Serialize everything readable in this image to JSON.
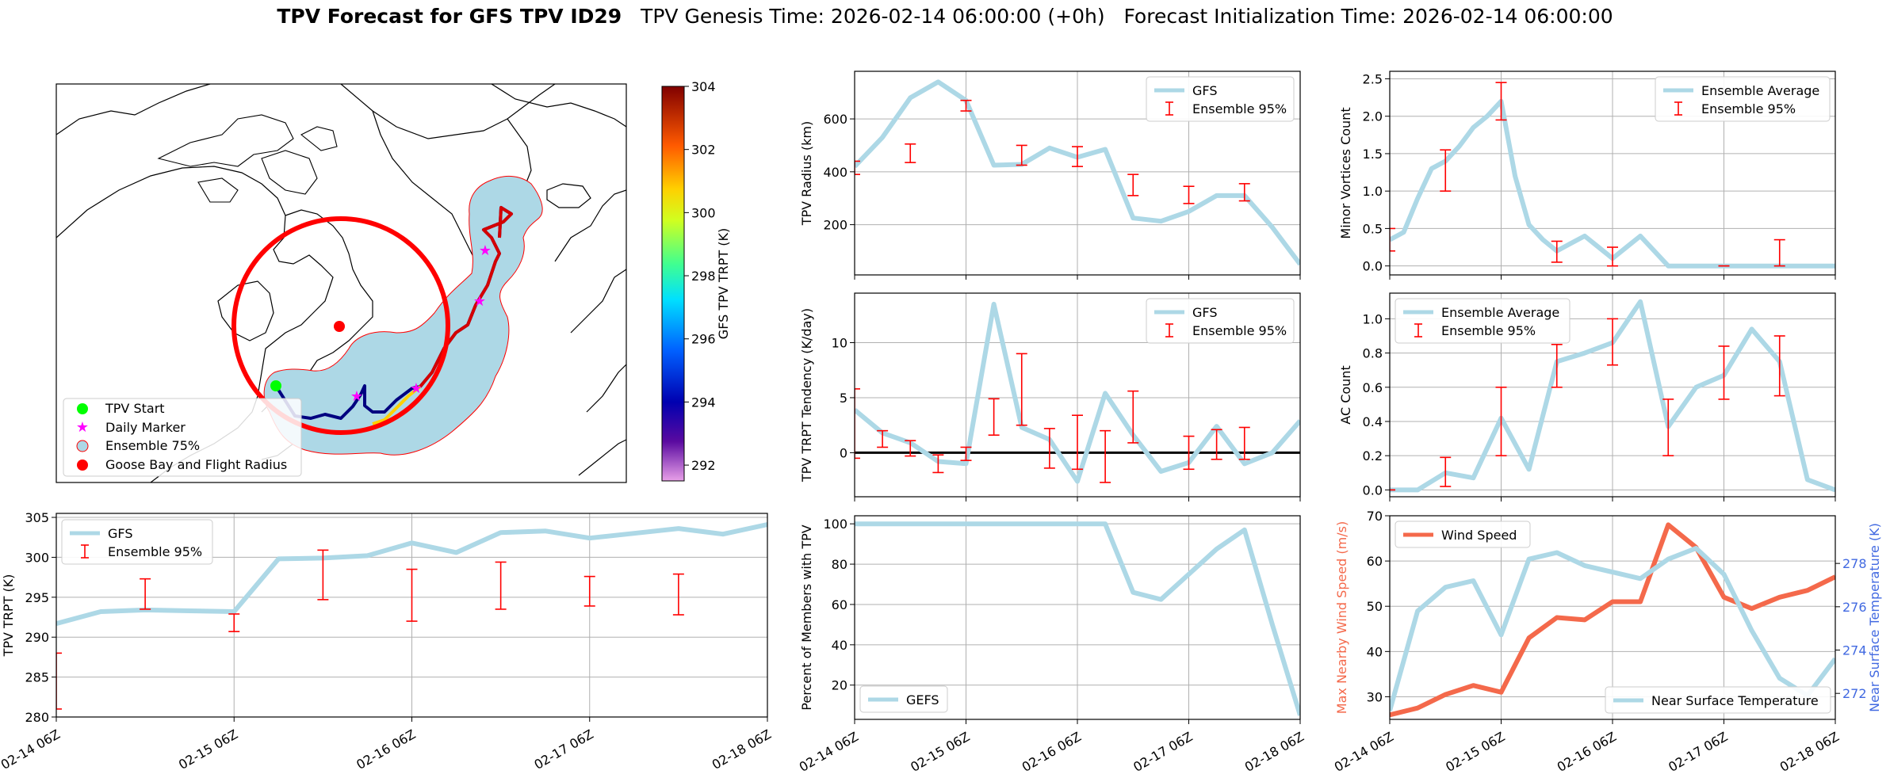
{
  "header": {
    "bold": "TPV Forecast for GFS TPV ID29",
    "genesis": "TPV Genesis Time: 2026-02-14 06:00:00 (+0h)",
    "init": "Forecast Initialization Time: 2026-02-14 06:00:00"
  },
  "map": {
    "legend": [
      "TPV Start",
      "Daily Marker",
      "Ensemble 75%",
      "Goose Bay and Flight Radius"
    ],
    "colorbar": {
      "label": "GFS TPV TRPT (K)",
      "ticks": [
        "304",
        "302",
        "300",
        "298",
        "296",
        "294",
        "292"
      ],
      "range": [
        291.5,
        304
      ]
    }
  },
  "colors": {
    "gfs": "#add8e6",
    "ens": "#ff0000",
    "wind": "#f4694b",
    "temp_axis": "#4169e1",
    "start": "#00ff00",
    "marker": "#ff00ff",
    "goose": "#ff0000"
  },
  "chart_data": [
    {
      "id": "trpt",
      "type": "line",
      "title": "",
      "xlabel": "",
      "ylabel": "TPV TRPT (K)",
      "xlim": [
        0,
        96
      ],
      "ylim": [
        280,
        305.5
      ],
      "xticks": [
        "02-14 06Z",
        "02-15 06Z",
        "02-16 06Z",
        "02-17 06Z",
        "02-18 06Z"
      ],
      "yticks": [
        "280",
        "285",
        "290",
        "295",
        "300",
        "305"
      ],
      "legend": [
        "GFS",
        "Ensemble 95%"
      ],
      "series": [
        {
          "name": "GFS",
          "x": [
            0,
            6,
            12,
            18,
            24,
            30,
            36,
            42,
            48,
            54,
            60,
            66,
            72,
            78,
            84,
            90,
            96
          ],
          "y": [
            291.7,
            293.2,
            293.4,
            293.3,
            293.2,
            299.8,
            299.9,
            300.2,
            301.8,
            300.6,
            303.1,
            303.3,
            302.4,
            303.0,
            303.6,
            302.9,
            304.1
          ]
        }
      ],
      "ensemble_95": [
        {
          "x": 0,
          "lo": 281.0,
          "hi": 288.0
        },
        {
          "x": 12,
          "lo": 293.5,
          "hi": 297.3
        },
        {
          "x": 24,
          "lo": 290.7,
          "hi": 292.9
        },
        {
          "x": 36,
          "lo": 294.7,
          "hi": 300.9
        },
        {
          "x": 48,
          "lo": 292.0,
          "hi": 298.5
        },
        {
          "x": 60,
          "lo": 293.5,
          "hi": 299.4
        },
        {
          "x": 72,
          "lo": 293.9,
          "hi": 297.6
        },
        {
          "x": 84,
          "lo": 292.8,
          "hi": 297.9
        }
      ]
    },
    {
      "id": "radius",
      "type": "line",
      "ylabel": "TPV Radius (km)",
      "xlim": [
        0,
        96
      ],
      "ylim": [
        10,
        780
      ],
      "xticks": [],
      "yticks": [
        "200",
        "400",
        "600"
      ],
      "legend": [
        "GFS",
        "Ensemble 95%"
      ],
      "series": [
        {
          "name": "GFS",
          "x": [
            0,
            6,
            12,
            18,
            24,
            30,
            36,
            42,
            48,
            54,
            60,
            66,
            72,
            78,
            84,
            90,
            96
          ],
          "y": [
            420,
            530,
            680,
            740,
            670,
            425,
            428,
            490,
            455,
            485,
            225,
            213,
            250,
            310,
            310,
            190,
            50
          ]
        }
      ],
      "ensemble_95": [
        {
          "x": 0,
          "lo": 390,
          "hi": 440
        },
        {
          "x": 12,
          "lo": 435,
          "hi": 505
        },
        {
          "x": 24,
          "lo": 630,
          "hi": 670
        },
        {
          "x": 36,
          "lo": 425,
          "hi": 500
        },
        {
          "x": 48,
          "lo": 420,
          "hi": 495
        },
        {
          "x": 60,
          "lo": 310,
          "hi": 390
        },
        {
          "x": 72,
          "lo": 280,
          "hi": 345
        },
        {
          "x": 84,
          "lo": 290,
          "hi": 355
        }
      ]
    },
    {
      "id": "tend",
      "type": "line",
      "ylabel": "TPV TRPT Tendency (K/day)",
      "xlim": [
        0,
        96
      ],
      "ylim": [
        -4,
        14.5
      ],
      "xticks": [],
      "yticks": [
        "0",
        "5",
        "10"
      ],
      "legend": [
        "GFS",
        "Ensemble 95%"
      ],
      "series": [
        {
          "name": "GFS",
          "x": [
            0,
            6,
            12,
            18,
            24,
            30,
            36,
            42,
            48,
            54,
            60,
            66,
            72,
            78,
            84,
            90,
            96
          ],
          "y": [
            3.9,
            1.8,
            0.9,
            -0.8,
            -1.0,
            13.5,
            2.3,
            1.2,
            -2.6,
            5.4,
            1.6,
            -1.7,
            -0.9,
            2.4,
            -1.0,
            0.0,
            2.9
          ]
        }
      ],
      "ensemble_95": [
        {
          "x": 0,
          "lo": -0.5,
          "hi": 5.8
        },
        {
          "x": 6,
          "lo": 0.5,
          "hi": 2.0
        },
        {
          "x": 12,
          "lo": -0.3,
          "hi": 1.1
        },
        {
          "x": 18,
          "lo": -1.8,
          "hi": -0.2
        },
        {
          "x": 24,
          "lo": -0.7,
          "hi": 0.5
        },
        {
          "x": 30,
          "lo": 1.6,
          "hi": 4.9
        },
        {
          "x": 36,
          "lo": 2.5,
          "hi": 9.0
        },
        {
          "x": 42,
          "lo": -1.4,
          "hi": 2.2
        },
        {
          "x": 48,
          "lo": -1.5,
          "hi": 3.4
        },
        {
          "x": 54,
          "lo": -2.7,
          "hi": 2.0
        },
        {
          "x": 60,
          "lo": 0.9,
          "hi": 5.6
        },
        {
          "x": 72,
          "lo": -1.5,
          "hi": 1.5
        },
        {
          "x": 78,
          "lo": -0.6,
          "hi": 2.1
        },
        {
          "x": 84,
          "lo": -0.6,
          "hi": 2.3
        }
      ]
    },
    {
      "id": "pct",
      "type": "line",
      "ylabel": "Percent of Members with TPV",
      "xlim": [
        0,
        96
      ],
      "ylim": [
        3,
        104
      ],
      "xticks": [
        "02-14 06Z",
        "02-15 06Z",
        "02-16 06Z",
        "02-17 06Z",
        "02-18 06Z"
      ],
      "yticks": [
        "20",
        "40",
        "60",
        "80",
        "100"
      ],
      "legend": [
        "GEFS"
      ],
      "series": [
        {
          "name": "GEFS",
          "x": [
            0,
            6,
            12,
            18,
            24,
            30,
            36,
            42,
            48,
            54,
            60,
            66,
            72,
            78,
            84,
            90,
            96
          ],
          "y": [
            100,
            100,
            100,
            100,
            100,
            100,
            100,
            100,
            100,
            100,
            66,
            62.5,
            75,
            87.5,
            97,
            50,
            5
          ]
        }
      ]
    },
    {
      "id": "minor",
      "type": "line",
      "ylabel": "Minor Vortices Count",
      "xlim": [
        0,
        96
      ],
      "ylim": [
        -0.12,
        2.6
      ],
      "xticks": [],
      "yticks": [
        "0.0",
        "0.5",
        "1.0",
        "1.5",
        "2.0",
        "2.5"
      ],
      "legend": [
        "Ensemble Average",
        "Ensemble 95%"
      ],
      "series": [
        {
          "name": "Ensemble Average",
          "x": [
            0,
            3,
            6,
            9,
            12,
            15,
            18,
            21,
            24,
            27,
            30,
            33,
            36,
            39,
            42,
            45,
            48,
            51,
            54,
            57,
            60,
            63,
            66,
            69,
            72,
            75,
            78,
            81,
            84,
            87,
            90,
            93,
            96
          ],
          "y": [
            0.35,
            0.45,
            0.9,
            1.3,
            1.4,
            1.6,
            1.85,
            2.0,
            2.2,
            1.2,
            0.55,
            0.35,
            0.2,
            0.3,
            0.4,
            0.25,
            0.1,
            0.25,
            0.4,
            0.2,
            0.0,
            0.0,
            0.0,
            0.0,
            0.0,
            0.0,
            0.0,
            0.0,
            0.0,
            0.0,
            0.0,
            0.0,
            0.0
          ]
        }
      ],
      "ensemble_95": [
        {
          "x": 0,
          "lo": 0.2,
          "hi": 0.5
        },
        {
          "x": 12,
          "lo": 1.0,
          "hi": 1.55
        },
        {
          "x": 24,
          "lo": 1.95,
          "hi": 2.45
        },
        {
          "x": 36,
          "lo": 0.05,
          "hi": 0.33
        },
        {
          "x": 48,
          "lo": 0.0,
          "hi": 0.25
        },
        {
          "x": 72,
          "lo": 0.0,
          "hi": 0.0
        },
        {
          "x": 84,
          "lo": 0.0,
          "hi": 0.35
        }
      ]
    },
    {
      "id": "ac",
      "type": "line",
      "ylabel": "AC Count",
      "xlim": [
        0,
        96
      ],
      "ylim": [
        -0.04,
        1.15
      ],
      "xticks": [],
      "yticks": [
        "0.0",
        "0.2",
        "0.4",
        "0.6",
        "0.8",
        "1.0"
      ],
      "legend": [
        "Ensemble Average",
        "Ensemble 95%"
      ],
      "series": [
        {
          "name": "Ensemble Average",
          "x": [
            0,
            6,
            12,
            18,
            24,
            30,
            36,
            42,
            48,
            54,
            60,
            66,
            72,
            78,
            84,
            90,
            96
          ],
          "y": [
            0.0,
            0.0,
            0.1,
            0.07,
            0.42,
            0.12,
            0.75,
            0.8,
            0.86,
            1.1,
            0.37,
            0.6,
            0.67,
            0.94,
            0.75,
            0.06,
            0.0
          ]
        }
      ],
      "ensemble_95": [
        {
          "x": 0,
          "lo": 0.0,
          "hi": 0.0
        },
        {
          "x": 12,
          "lo": 0.02,
          "hi": 0.19
        },
        {
          "x": 24,
          "lo": 0.2,
          "hi": 0.6
        },
        {
          "x": 36,
          "lo": 0.6,
          "hi": 0.85
        },
        {
          "x": 48,
          "lo": 0.73,
          "hi": 1.0
        },
        {
          "x": 60,
          "lo": 0.2,
          "hi": 0.53
        },
        {
          "x": 72,
          "lo": 0.53,
          "hi": 0.84
        },
        {
          "x": 84,
          "lo": 0.55,
          "hi": 0.9
        }
      ]
    },
    {
      "id": "wind",
      "type": "line",
      "ylabel": "Max Nearby Wind Speed (m/s)",
      "ylabel_right": "Near Surface Temperature (K)",
      "xlim": [
        0,
        96
      ],
      "ylim": [
        25,
        70
      ],
      "ylim_right": [
        270.8,
        280.2
      ],
      "xticks": [
        "02-14 06Z",
        "02-15 06Z",
        "02-16 06Z",
        "02-17 06Z",
        "02-18 06Z"
      ],
      "yticks": [
        "30",
        "40",
        "50",
        "60",
        "70"
      ],
      "yticks_right": [
        "272",
        "274",
        "276",
        "278"
      ],
      "legend": [
        "Wind Speed",
        "Near Surface Temperature"
      ],
      "series": [
        {
          "name": "Wind Speed",
          "axis": "left",
          "x": [
            0,
            6,
            12,
            18,
            24,
            30,
            36,
            42,
            48,
            54,
            60,
            66,
            72,
            78,
            84,
            90,
            96
          ],
          "y": [
            26,
            27.5,
            30.5,
            32.5,
            31,
            43,
            47.5,
            47,
            51,
            51,
            68,
            63,
            52,
            49.5,
            52,
            53.5,
            56.5
          ]
        },
        {
          "name": "Near Surface Temperature",
          "axis": "right",
          "x": [
            0,
            6,
            12,
            18,
            24,
            30,
            36,
            42,
            48,
            54,
            60,
            66,
            72,
            78,
            84,
            90,
            96
          ],
          "y": [
            271.2,
            275.8,
            276.9,
            277.2,
            274.7,
            278.2,
            278.5,
            277.9,
            277.6,
            277.3,
            278.2,
            278.7,
            277.5,
            274.9,
            272.7,
            271.9,
            273.6
          ]
        }
      ]
    }
  ]
}
